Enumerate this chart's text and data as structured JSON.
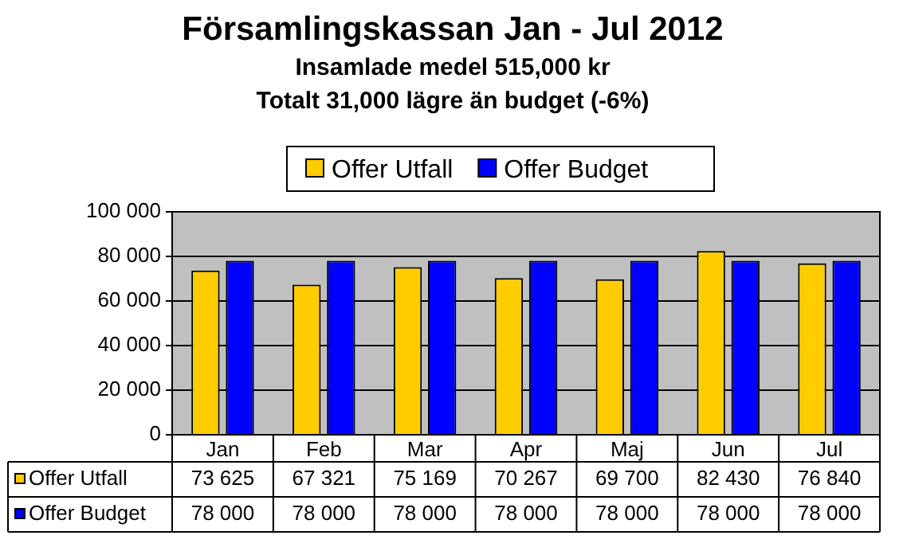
{
  "chart_data": {
    "type": "bar",
    "title": "Församlingskassan Jan - Jul 2012",
    "subtitle": "Insamlade medel 515,000 kr",
    "annotations": [
      "Totalt 31,000 lägre än budget (-6%)"
    ],
    "categories": [
      "Jan",
      "Feb",
      "Mar",
      "Apr",
      "Maj",
      "Jun",
      "Jul"
    ],
    "series": [
      {
        "name": "Offer Utfall",
        "color": "#ffcc00",
        "values": [
          73625,
          67321,
          75169,
          70267,
          69700,
          82430,
          76840
        ]
      },
      {
        "name": "Offer Budget",
        "color": "#0000ff",
        "values": [
          78000,
          78000,
          78000,
          78000,
          78000,
          78000,
          78000
        ]
      }
    ],
    "ylim": [
      0,
      100000
    ],
    "yticks": [
      0,
      20000,
      40000,
      60000,
      80000,
      100000
    ],
    "grid": "y",
    "legend": "top",
    "data_labels": true
  }
}
